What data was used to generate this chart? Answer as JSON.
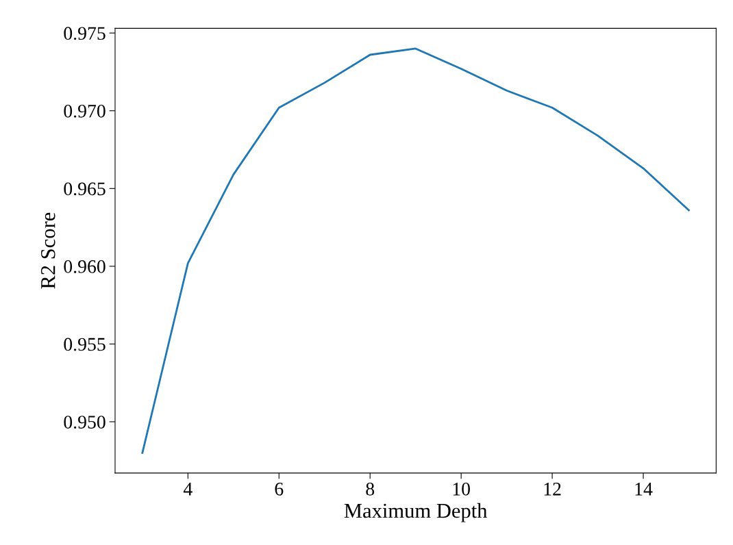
{
  "chart_data": {
    "type": "line",
    "xlabel": "Maximum Depth",
    "ylabel": "R2 Score",
    "x": [
      3,
      4,
      5,
      6,
      7,
      8,
      9,
      10,
      11,
      12,
      13,
      14,
      15
    ],
    "series": [
      {
        "color": "#1f77b4",
        "values": [
          0.948,
          0.9602,
          0.9659,
          0.9702,
          0.9718,
          0.9736,
          0.974,
          0.9727,
          0.9713,
          0.9702,
          0.9684,
          0.9663,
          0.9636
        ]
      }
    ],
    "xlim": [
      2.4,
      15.6
    ],
    "xticks": [
      4,
      6,
      8,
      10,
      12,
      14
    ],
    "ylim": [
      0.9467,
      0.9753
    ],
    "yticks": [
      {
        "value": 0.95,
        "label": "0.950"
      },
      {
        "value": 0.955,
        "label": "0.955"
      },
      {
        "value": 0.96,
        "label": "0.960"
      },
      {
        "value": 0.965,
        "label": "0.965"
      },
      {
        "value": 0.97,
        "label": "0.970"
      },
      {
        "value": 0.975,
        "label": "0.975"
      }
    ],
    "grid": false,
    "marker": "none",
    "line_style": "solid"
  }
}
